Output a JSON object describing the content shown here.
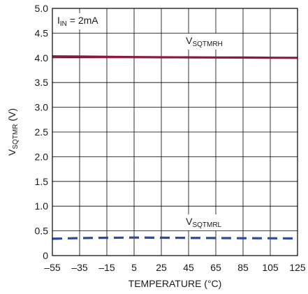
{
  "chart_data": {
    "type": "line",
    "xlabel": "TEMPERATURE (°C)",
    "ylabel": {
      "main": "V",
      "sub": "SQTMR",
      "suffix": " (V)"
    },
    "x_ticks": [
      "–55",
      "–35",
      "–15",
      "5",
      "25",
      "45",
      "65",
      "85",
      "105",
      "125"
    ],
    "y_ticks": [
      "0",
      "0.5",
      "1.0",
      "1.5",
      "2.0",
      "2.5",
      "3.0",
      "3.5",
      "4.0",
      "4.5",
      "5.0"
    ],
    "xlim": [
      -55,
      125
    ],
    "ylim": [
      0,
      5
    ],
    "grid": true,
    "condition": {
      "main": "I",
      "sub": "IN",
      "suffix": " = 2mA"
    },
    "series": [
      {
        "name": "VSQTMRH",
        "label_main": "V",
        "label_sub": "SQTMRH",
        "color": "#8b1a3c",
        "style": "solid",
        "x": [
          -55,
          -35,
          -15,
          5,
          25,
          45,
          65,
          85,
          105,
          125
        ],
        "y": [
          4.03,
          4.025,
          4.02,
          4.015,
          4.012,
          4.01,
          4.007,
          4.005,
          4.002,
          4.0
        ]
      },
      {
        "name": "VSQTMRL",
        "label_main": "V",
        "label_sub": "SQTMRL",
        "color": "#2d4a9c",
        "style": "dashed",
        "x": [
          -55,
          -35,
          -15,
          5,
          25,
          45,
          65,
          85,
          105,
          125
        ],
        "y": [
          0.34,
          0.355,
          0.36,
          0.365,
          0.362,
          0.358,
          0.355,
          0.352,
          0.35,
          0.348
        ]
      }
    ]
  }
}
